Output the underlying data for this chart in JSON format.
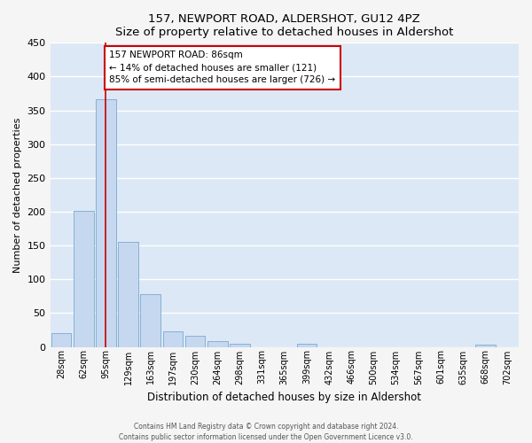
{
  "title": "157, NEWPORT ROAD, ALDERSHOT, GU12 4PZ",
  "subtitle": "Size of property relative to detached houses in Aldershot",
  "xlabel": "Distribution of detached houses by size in Aldershot",
  "ylabel": "Number of detached properties",
  "bar_labels": [
    "28sqm",
    "62sqm",
    "95sqm",
    "129sqm",
    "163sqm",
    "197sqm",
    "230sqm",
    "264sqm",
    "298sqm",
    "331sqm",
    "365sqm",
    "399sqm",
    "432sqm",
    "466sqm",
    "500sqm",
    "534sqm",
    "567sqm",
    "601sqm",
    "635sqm",
    "668sqm",
    "702sqm"
  ],
  "bar_values": [
    20,
    201,
    366,
    155,
    78,
    23,
    16,
    9,
    5,
    0,
    0,
    4,
    0,
    0,
    0,
    0,
    0,
    0,
    0,
    3,
    0
  ],
  "bar_color": "#c5d8f0",
  "bar_edge_color": "#7aaad0",
  "bar_edge_width": 0.6,
  "vline_x_index": 2,
  "vline_color": "#cc0000",
  "ylim": [
    0,
    450
  ],
  "yticks": [
    0,
    50,
    100,
    150,
    200,
    250,
    300,
    350,
    400,
    450
  ],
  "annotation_line1": "157 NEWPORT ROAD: 86sqm",
  "annotation_line2": "← 14% of detached houses are smaller (121)",
  "annotation_line3": "85% of semi-detached houses are larger (726) →",
  "annotation_box_color": "#ffffff",
  "annotation_box_edge": "#cc0000",
  "footer_line1": "Contains HM Land Registry data © Crown copyright and database right 2024.",
  "footer_line2": "Contains public sector information licensed under the Open Government Licence v3.0.",
  "plot_bg_color": "#dce8f5",
  "fig_bg_color": "#f5f5f5",
  "figsize": [
    6.0,
    5.0
  ],
  "dpi": 100
}
